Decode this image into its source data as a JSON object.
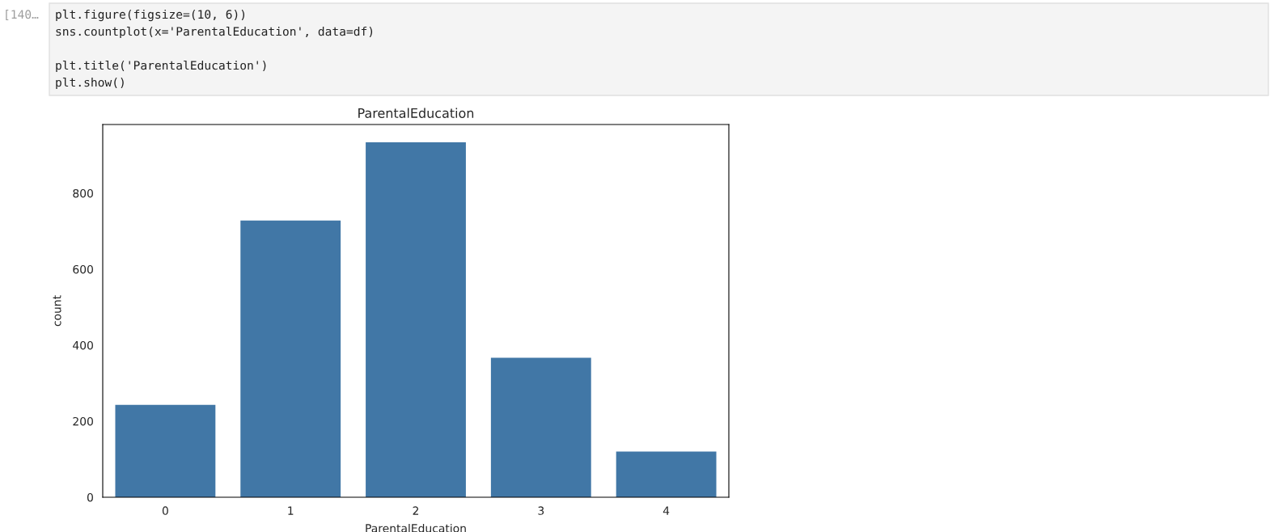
{
  "chart_data": {
    "type": "bar",
    "title": "ParentalEducation",
    "xlabel": "ParentalEducation",
    "ylabel": "count",
    "categories": [
      "0",
      "1",
      "2",
      "3",
      "4"
    ],
    "values": [
      243,
      728,
      934,
      367,
      120
    ],
    "color": "#4177a6",
    "ylim": [
      0,
      980.7
    ],
    "yticks": [
      0,
      200,
      400,
      600,
      800
    ],
    "grid": false,
    "annotations": [
      "[140…",
      "plt.figure(figsize=(10, 6))",
      "sns.countplot(x='ParentalEducation', data=df)",
      "plt.title('ParentalEducation')",
      "plt.show()"
    ]
  }
}
